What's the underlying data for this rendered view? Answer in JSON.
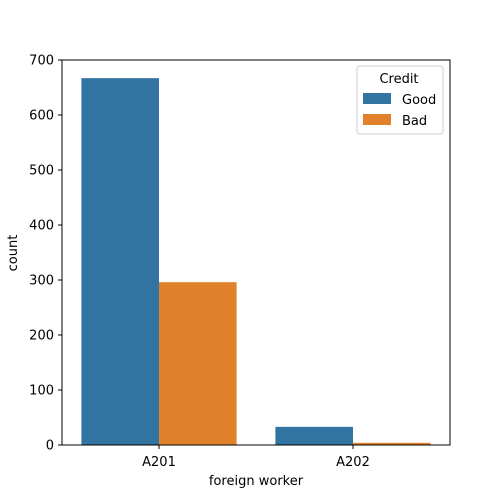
{
  "chart_data": {
    "type": "bar",
    "title": "",
    "xlabel": "foreign worker",
    "ylabel": "count",
    "categories": [
      "A201",
      "A202"
    ],
    "series": [
      {
        "name": "Good",
        "values": [
          667,
          33
        ],
        "color": "#3274a1"
      },
      {
        "name": "Bad",
        "values": [
          296,
          4
        ],
        "color": "#e1812c"
      }
    ],
    "ylim": [
      0,
      700
    ],
    "yticks": [
      0,
      100,
      200,
      300,
      400,
      500,
      600,
      700
    ],
    "grid": false,
    "legend": {
      "title": "Credit",
      "placement": "top-right"
    }
  }
}
